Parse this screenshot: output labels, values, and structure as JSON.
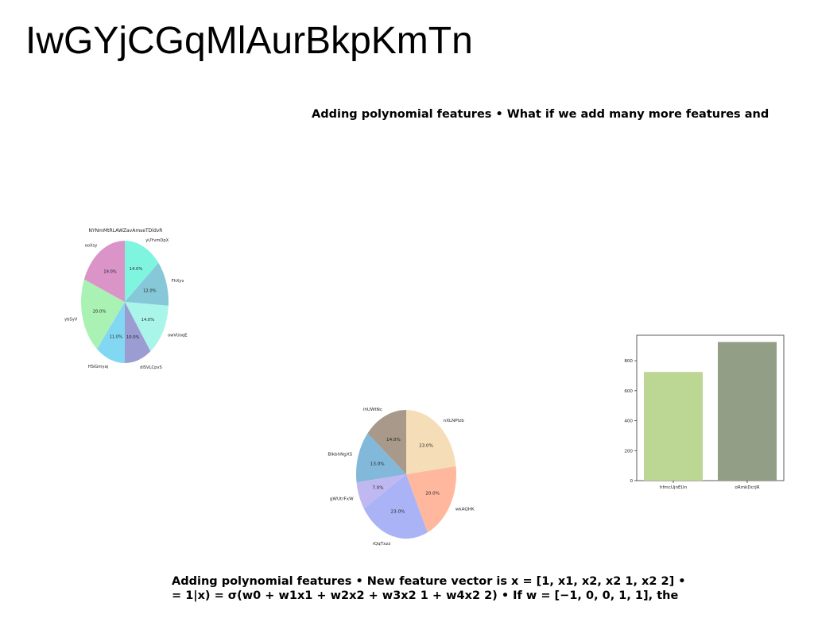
{
  "title": "IwGYjCGqMlAurBkpKmTn",
  "text_blocks": {
    "top": "Adding polynomial features • What if we add many more features and",
    "bottom_line1": "Adding polynomial features • New feature vector is x = [1, x1, x2, x2 1, x2 2] •",
    "bottom_line2": "= 1|x) = σ(w0 + w1x1 + w2x2 + w3x2 1 + w4x2 2) • If w = [−1, 0, 0, 1, 1], the"
  },
  "chart_data": [
    {
      "type": "pie",
      "title": "NYNmMtRLAWZavAmseTDldvR",
      "labels": [
        "yUYvmDpX",
        "FhXyv",
        "owVUoqE",
        "dlSVLCpvS",
        "HSiGmyaj",
        "ybSyV",
        "ooXsy"
      ],
      "values": [
        14.0,
        12.0,
        14.0,
        10.0,
        11.0,
        20.0,
        19.0
      ],
      "value_labels": [
        "14.0%",
        "12.0%",
        "14.0%",
        "10.0%",
        "11.0%",
        "20.0%",
        "19.0%"
      ],
      "colors": [
        "#7ff5e0",
        "#86c8d8",
        "#aaf5ea",
        "#9b9dd2",
        "#82d8f2",
        "#aaf2b4",
        "#da94c8"
      ]
    },
    {
      "type": "pie",
      "title": "",
      "labels": [
        "nXLNPlzb",
        "wkAQHK",
        "rQqTxzz",
        "gWUtrFxW",
        "BlkbhNgXS",
        "ihUWtNc"
      ],
      "values": [
        23.0,
        20.0,
        23.0,
        7.0,
        13.0,
        14.0
      ],
      "value_labels": [
        "23.0%",
        "20.0%",
        "23.0%",
        "7.0%",
        "13.0%",
        "14.0%"
      ],
      "colors": [
        "#f5ddb8",
        "#ffb89e",
        "#a9b3f5",
        "#c0b8f0",
        "#82b8da",
        "#a8998a"
      ]
    },
    {
      "type": "bar",
      "title": "",
      "categories": [
        "hfmcUjnEUn",
        "oRmkDcrJR"
      ],
      "values": [
        725,
        925
      ],
      "colors": [
        "#bbd793",
        "#929e85"
      ],
      "ylim": [
        0,
        970
      ],
      "yticks": [
        0,
        200,
        400,
        600,
        800
      ],
      "xlabel": "",
      "ylabel": ""
    }
  ]
}
